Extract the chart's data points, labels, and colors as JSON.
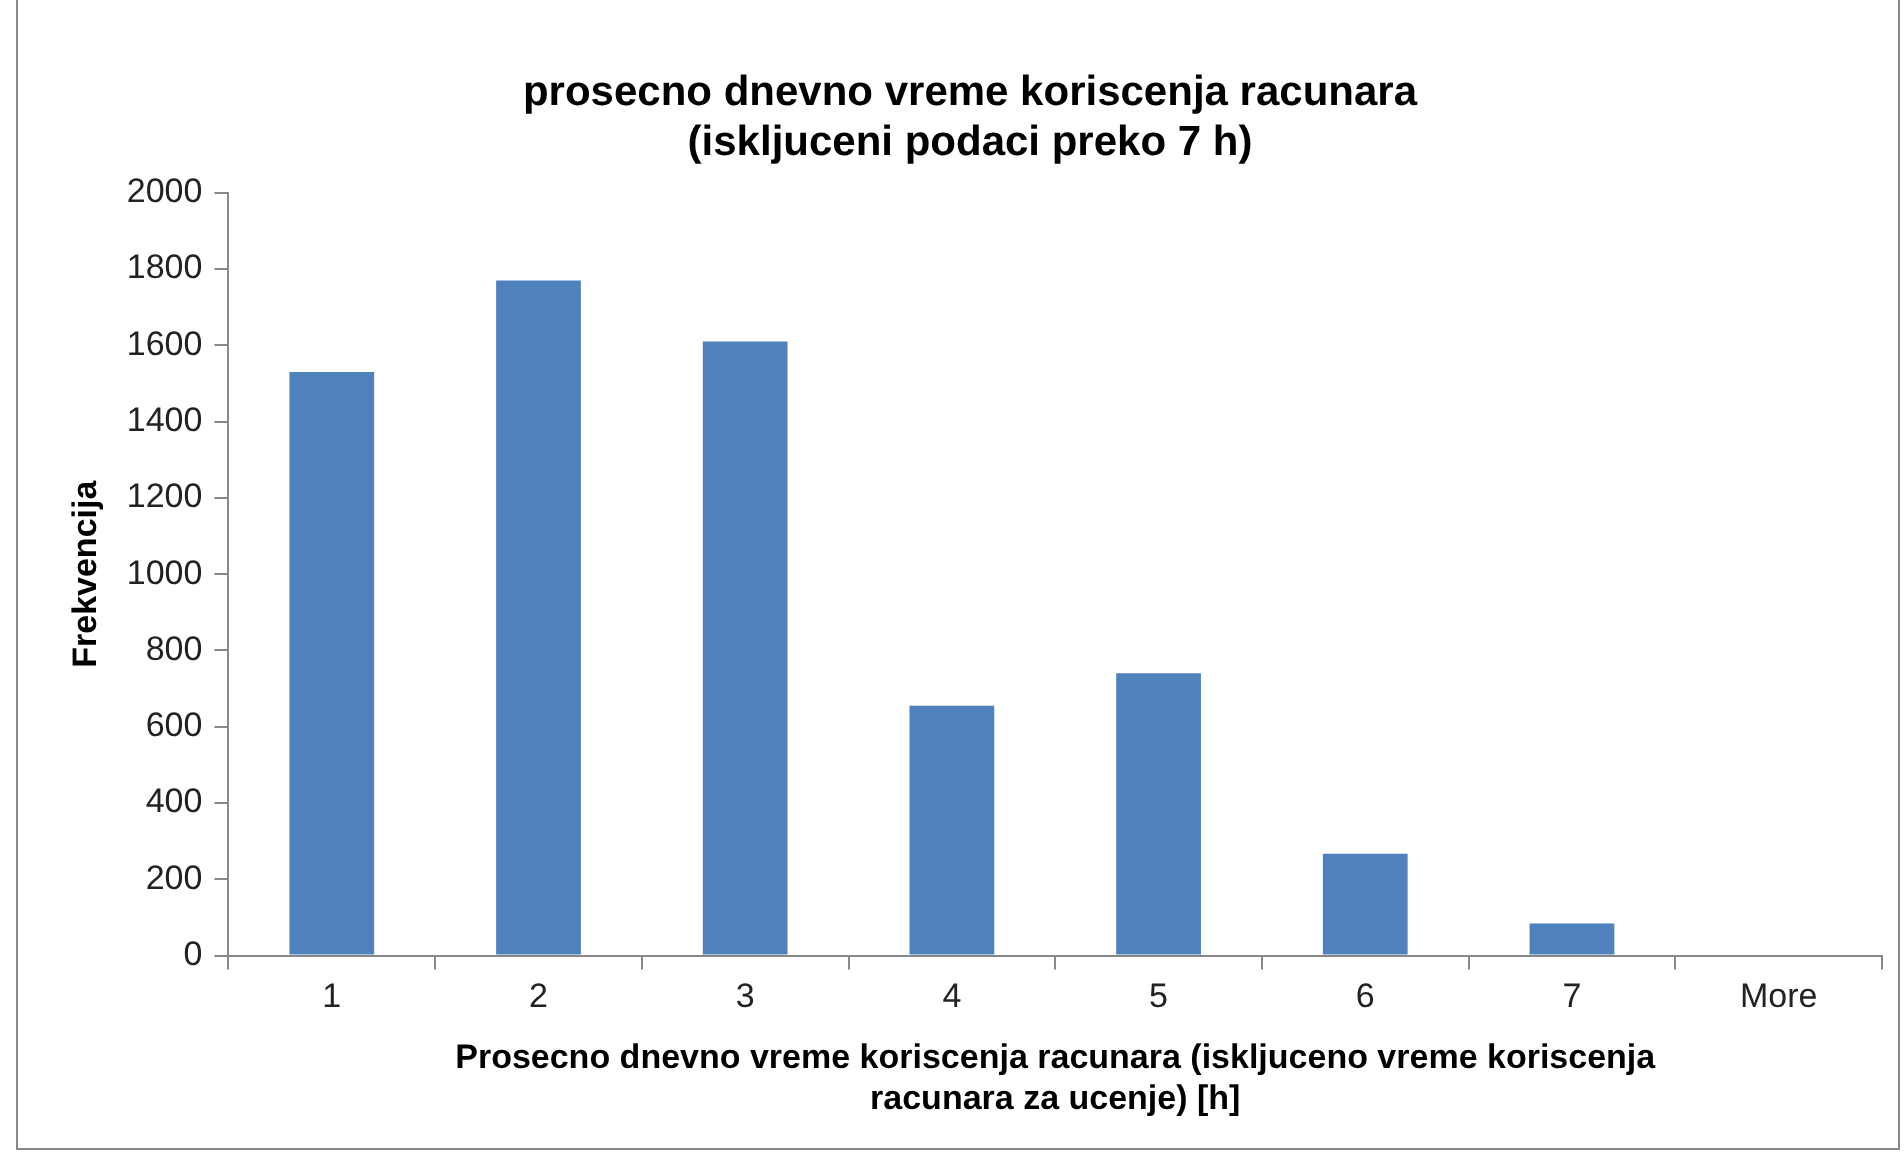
{
  "chart_data": {
    "type": "bar",
    "title": [
      "prosecno dnevno vreme koriscenja racunara",
      "(iskljuceni podaci preko 7 h)"
    ],
    "xlabel": [
      "Prosecno dnevno vreme koriscenja racunara (iskljuceno vreme koriscenja",
      "racunara za ucenje) [h]"
    ],
    "ylabel": "Frekvencija",
    "categories": [
      "1",
      "2",
      "3",
      "4",
      "5",
      "6",
      "7",
      "More"
    ],
    "values": [
      1530,
      1770,
      1610,
      655,
      740,
      267,
      84,
      0
    ],
    "color": "#4f81bd",
    "ylim": [
      0,
      2000
    ],
    "yticks": [
      0,
      200,
      400,
      600,
      800,
      1000,
      1200,
      1400,
      1600,
      1800,
      2000
    ],
    "grid": false,
    "legend": false
  }
}
